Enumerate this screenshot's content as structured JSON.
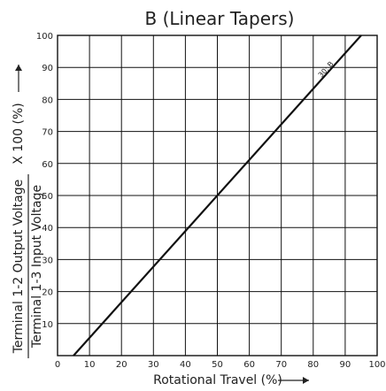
{
  "chart_data": {
    "type": "line",
    "title": "B (Linear Tapers)",
    "xlabel": "Rotational Travel (%)",
    "ylabel": {
      "prefix_top": "Terminal 1-2 Output Voltage",
      "prefix_bottom": "Terminal 1-3 Input Voltage",
      "suffix": "X 100 (%)"
    },
    "xlim": [
      0,
      100
    ],
    "ylim": [
      0,
      100
    ],
    "x_ticks": [
      "0",
      "10",
      "20",
      "30",
      "40",
      "50",
      "60",
      "70",
      "80",
      "90",
      "100"
    ],
    "y_ticks": [
      "10",
      "20",
      "30",
      "40",
      "50",
      "60",
      "70",
      "80",
      "90",
      "100"
    ],
    "grid": true,
    "series": [
      {
        "name": "30: B",
        "x": [
          5,
          95
        ],
        "y": [
          0,
          100
        ]
      }
    ]
  }
}
